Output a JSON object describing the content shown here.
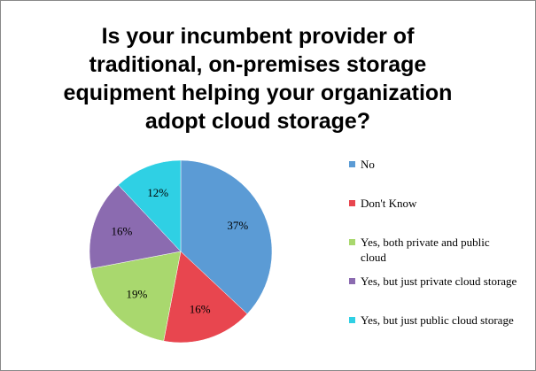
{
  "chart_data": {
    "type": "pie",
    "title": "Is your incumbent provider of traditional, on-premises storage equipment helping your organization adopt cloud storage?",
    "categories": [
      "No",
      "Don't Know",
      "Yes, both private and public cloud",
      "Yes, but just private cloud storage",
      "Yes, but just public cloud storage"
    ],
    "values": [
      37,
      16,
      19,
      16,
      12
    ],
    "value_labels": [
      "37%",
      "16%",
      "19%",
      "16%",
      "12%"
    ],
    "colors": [
      "#5b9bd5",
      "#e8464f",
      "#a9d86e",
      "#8b6bb0",
      "#2fd0e4"
    ],
    "legend": "right"
  }
}
